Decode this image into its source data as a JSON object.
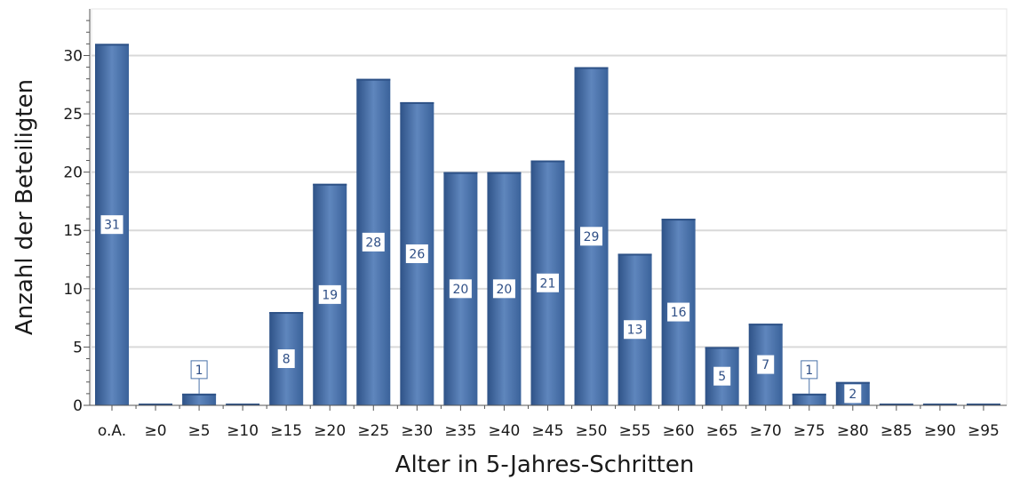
{
  "chart_data": {
    "type": "bar",
    "title": "",
    "xlabel": "Alter in 5-Jahres-Schritten",
    "ylabel": "Anzahl der Beteiligten",
    "categories": [
      "o.A.",
      "≥0",
      "≥5",
      "≥10",
      "≥15",
      "≥20",
      "≥25",
      "≥30",
      "≥35",
      "≥40",
      "≥45",
      "≥50",
      "≥55",
      "≥60",
      "≥65",
      "≥70",
      "≥75",
      "≥80",
      "≥85",
      "≥90",
      "≥95"
    ],
    "values": [
      31,
      0,
      1,
      0,
      8,
      19,
      28,
      26,
      20,
      20,
      21,
      29,
      13,
      16,
      5,
      7,
      1,
      2,
      0,
      0,
      0
    ],
    "data_labels": [
      "31",
      "",
      "1",
      "",
      "8",
      "19",
      "28",
      "26",
      "20",
      "20",
      "21",
      "29",
      "13",
      "16",
      "5",
      "7",
      "1",
      "2",
      "",
      "",
      ""
    ],
    "ylim": [
      0,
      34
    ],
    "yticks": [
      0,
      5,
      10,
      15,
      20,
      25,
      30
    ],
    "grid": true,
    "legend": "none",
    "colors": {
      "bar": "#4a72a8",
      "bar_dark": "#2e5287",
      "bar_light": "#5f86bd",
      "grid": "#d9d9d9",
      "axis": "#555555",
      "label_border": "#4a72a8"
    }
  }
}
